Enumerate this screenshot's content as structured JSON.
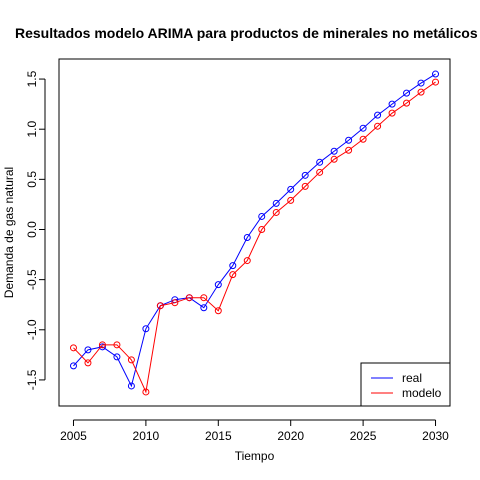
{
  "chart_data": {
    "type": "line",
    "title": "Resultados modelo ARIMA para productos de minerales no metálicos",
    "xlabel": "Tiempo",
    "ylabel": "Demanda de gas natural",
    "xlim": [
      2004.0,
      2031.0
    ],
    "ylim": [
      -1.76,
      1.7
    ],
    "xticks": [
      2005,
      2010,
      2015,
      2020,
      2025,
      2030
    ],
    "xtick_labels": [
      "2005",
      "2010",
      "2015",
      "2020",
      "2025",
      "2030"
    ],
    "yticks": [
      -1.5,
      -1.0,
      -0.5,
      0.0,
      0.5,
      1.0,
      1.5
    ],
    "ytick_labels": [
      "-1.5",
      "-1.0",
      "-0.5",
      "0.0",
      "0.5",
      "1.0",
      "1.5"
    ],
    "grid": false,
    "legend_position": "bottom-right",
    "x": [
      2005,
      2006,
      2007,
      2008,
      2009,
      2010,
      2011,
      2012,
      2013,
      2014,
      2015,
      2016,
      2017,
      2018,
      2019,
      2020,
      2021,
      2022,
      2023,
      2024,
      2025,
      2026,
      2027,
      2028,
      2029,
      2030
    ],
    "series": [
      {
        "name": "real",
        "color": "#0000ff",
        "values": [
          -1.36,
          -1.2,
          -1.17,
          -1.27,
          -1.56,
          -0.99,
          -0.76,
          -0.7,
          -0.68,
          -0.78,
          -0.55,
          -0.36,
          -0.08,
          0.13,
          0.26,
          0.4,
          0.54,
          0.67,
          0.78,
          0.89,
          1.01,
          1.14,
          1.25,
          1.36,
          1.46,
          1.55
        ]
      },
      {
        "name": "modelo",
        "color": "#ff0000",
        "values": [
          -1.18,
          -1.33,
          -1.15,
          -1.15,
          -1.3,
          -1.62,
          -0.76,
          -0.73,
          -0.68,
          -0.68,
          -0.81,
          -0.45,
          -0.31,
          0.0,
          0.17,
          0.29,
          0.43,
          0.57,
          0.7,
          0.79,
          0.9,
          1.03,
          1.16,
          1.26,
          1.37,
          1.47
        ]
      }
    ]
  }
}
